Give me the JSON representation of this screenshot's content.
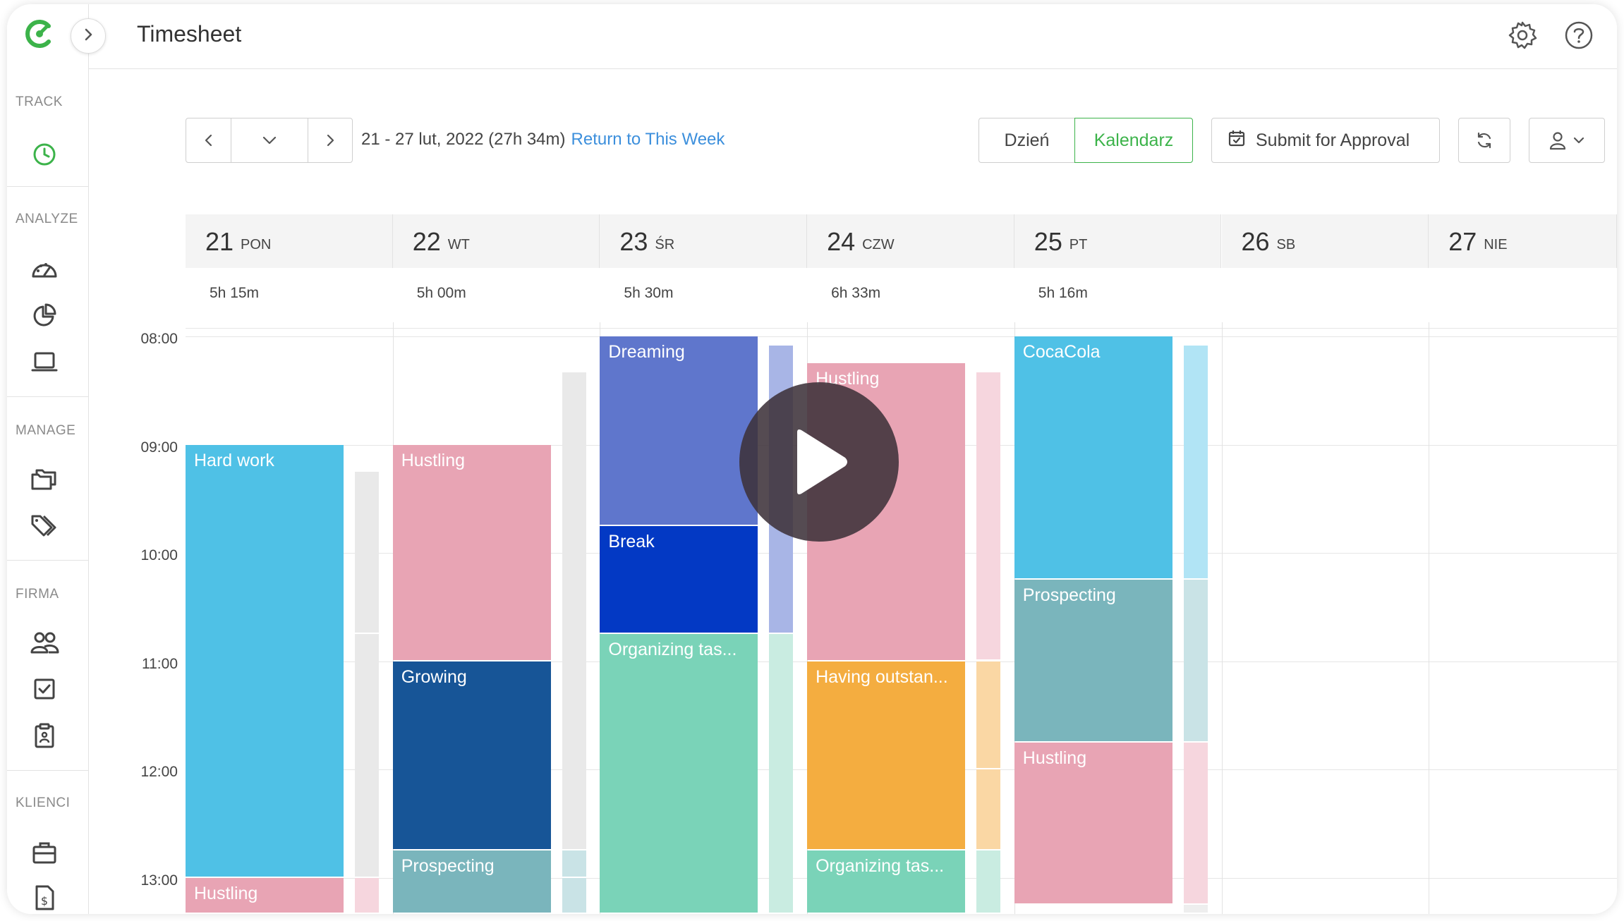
{
  "app": {
    "title": "Timesheet"
  },
  "sidebar": {
    "sections": [
      {
        "label": "TRACK"
      },
      {
        "label": "ANALYZE"
      },
      {
        "label": "MANAGE"
      },
      {
        "label": "FIRMA"
      },
      {
        "label": "KLIENCI"
      }
    ]
  },
  "toolbar": {
    "range_text": "21 - 27 lut, 2022 (27h 34m)",
    "return_link": "Return to This Week",
    "day_button": "Dzień",
    "calendar_button": "Kalendarz",
    "submit_button": "Submit for Approval"
  },
  "days": [
    {
      "num": "21",
      "name": "PON",
      "total": "5h 15m"
    },
    {
      "num": "22",
      "name": "WT",
      "total": "5h 00m"
    },
    {
      "num": "23",
      "name": "ŚR",
      "total": "5h 30m"
    },
    {
      "num": "24",
      "name": "CZW",
      "total": "6h 33m"
    },
    {
      "num": "25",
      "name": "PT",
      "total": "5h 16m"
    },
    {
      "num": "26",
      "name": "SB",
      "total": ""
    },
    {
      "num": "27",
      "name": "NIE",
      "total": ""
    }
  ],
  "times": [
    "08:00",
    "09:00",
    "10:00",
    "11:00",
    "12:00",
    "13:00"
  ],
  "events": [
    {
      "day": 0,
      "start": "09:00",
      "end": "13:00",
      "label": "Hard work",
      "color": "#4fc1e6"
    },
    {
      "day": 0,
      "start": "13:00",
      "end": "13:25",
      "label": "Hustling",
      "color": "#e8a4b4"
    },
    {
      "day": 1,
      "start": "09:00",
      "end": "11:00",
      "label": "Hustling",
      "color": "#e8a4b4"
    },
    {
      "day": 1,
      "start": "11:00",
      "end": "12:45",
      "label": "Growing",
      "color": "#175597"
    },
    {
      "day": 1,
      "start": "12:45",
      "end": "13:25",
      "label": "Prospecting",
      "color": "#7ab5bc"
    },
    {
      "day": 2,
      "start": "08:00",
      "end": "09:45",
      "label": "Dreaming",
      "color": "#5f76cc"
    },
    {
      "day": 2,
      "start": "09:45",
      "end": "10:45",
      "label": "Break",
      "color": "#0339c4"
    },
    {
      "day": 2,
      "start": "10:45",
      "end": "13:25",
      "label": "Organizing tas...",
      "color": "#7ad3b8"
    },
    {
      "day": 3,
      "start": "08:15",
      "end": "11:00",
      "label": "Hustling",
      "color": "#e8a4b4"
    },
    {
      "day": 3,
      "start": "11:00",
      "end": "12:45",
      "label": "Having outstan...",
      "color": "#f4ad40"
    },
    {
      "day": 3,
      "start": "12:45",
      "end": "13:25",
      "label": "Organizing tas...",
      "color": "#7ad3b8"
    },
    {
      "day": 4,
      "start": "08:00",
      "end": "10:15",
      "label": "CocaCola",
      "color": "#4fc1e6"
    },
    {
      "day": 4,
      "start": "10:15",
      "end": "11:45",
      "label": "Prospecting",
      "color": "#7ab5bc"
    },
    {
      "day": 4,
      "start": "11:45",
      "end": "13:15",
      "label": "Hustling",
      "color": "#e8a4b4"
    }
  ],
  "bars": [
    {
      "day": 0,
      "start": "09:15",
      "end": "10:45",
      "color": "#e9e9e9"
    },
    {
      "day": 0,
      "start": "10:45",
      "end": "13:00",
      "color": "#e9e9e9"
    },
    {
      "day": 0,
      "start": "13:00",
      "end": "13:25",
      "color": "#f6d6de"
    },
    {
      "day": 1,
      "start": "08:20",
      "end": "12:45",
      "color": "#e9e9e9"
    },
    {
      "day": 1,
      "start": "12:45",
      "end": "13:00",
      "color": "#c9e3e6"
    },
    {
      "day": 1,
      "start": "13:00",
      "end": "13:25",
      "color": "#c9e3e6"
    },
    {
      "day": 2,
      "start": "08:05",
      "end": "10:45",
      "color": "#a8b5e6"
    },
    {
      "day": 2,
      "start": "10:45",
      "end": "13:25",
      "color": "#c9ece1"
    },
    {
      "day": 3,
      "start": "08:20",
      "end": "11:00",
      "color": "#f6d6de"
    },
    {
      "day": 3,
      "start": "11:00",
      "end": "12:00",
      "color": "#fad7a4"
    },
    {
      "day": 3,
      "start": "12:00",
      "end": "12:45",
      "color": "#fad7a4"
    },
    {
      "day": 3,
      "start": "12:45",
      "end": "13:25",
      "color": "#c9ece1"
    },
    {
      "day": 4,
      "start": "08:05",
      "end": "10:15",
      "color": "#b1e4f5"
    },
    {
      "day": 4,
      "start": "10:15",
      "end": "11:45",
      "color": "#c9e3e6"
    },
    {
      "day": 4,
      "start": "11:45",
      "end": "13:15",
      "color": "#f6d6de"
    },
    {
      "day": 4,
      "start": "13:15",
      "end": "13:25",
      "color": "#eeeeee"
    }
  ],
  "colors": {
    "accent": "#3cb34a",
    "link": "#3c8fdc"
  },
  "icons": {
    "logo": "clockify-logo-icon",
    "expand": "chevron-right-icon",
    "settings": "gear-icon",
    "help": "help-icon",
    "play": "play-icon"
  }
}
